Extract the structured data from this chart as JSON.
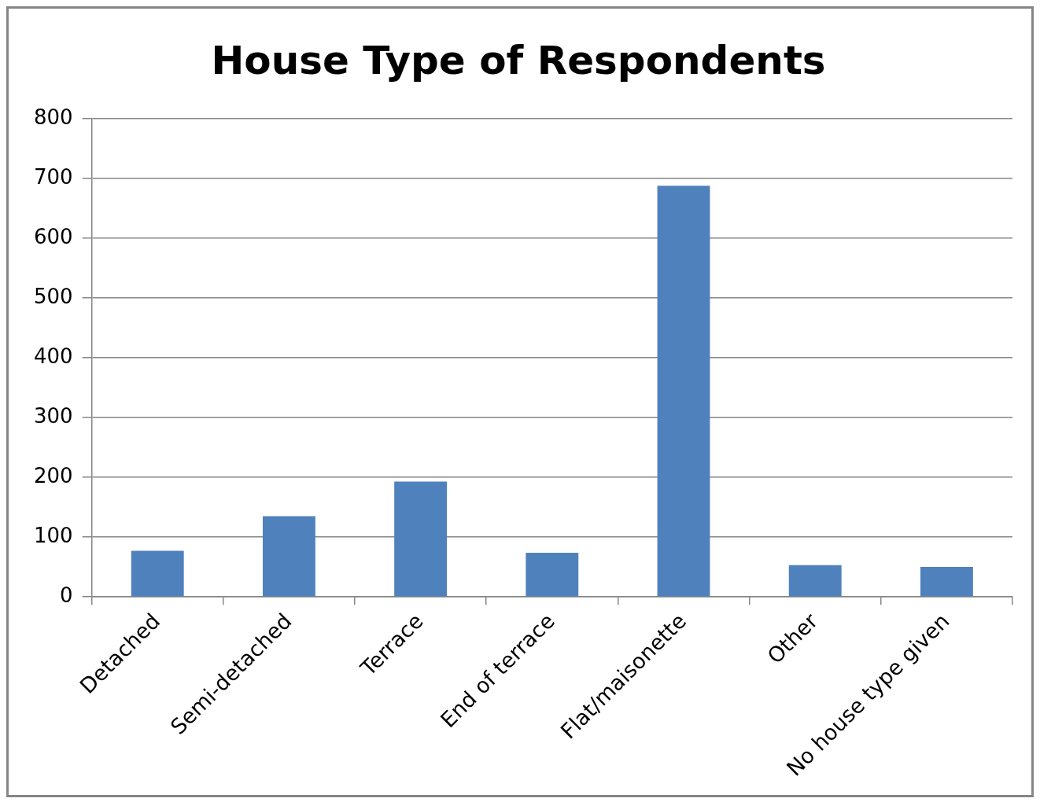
{
  "chart_data": {
    "type": "bar",
    "title": "House Type of Respondents",
    "categories": [
      "Detached",
      "Semi-detached",
      "Terrace",
      "End of terrace",
      "Flat/maisonette",
      "Other",
      "No house type given"
    ],
    "values": [
      77,
      135,
      193,
      74,
      688,
      53,
      50
    ],
    "color": "#4f81bd",
    "ylim": [
      0,
      800
    ],
    "yticks": [
      0,
      100,
      200,
      300,
      400,
      500,
      600,
      700,
      800
    ],
    "grid": "y",
    "legend": false
  }
}
